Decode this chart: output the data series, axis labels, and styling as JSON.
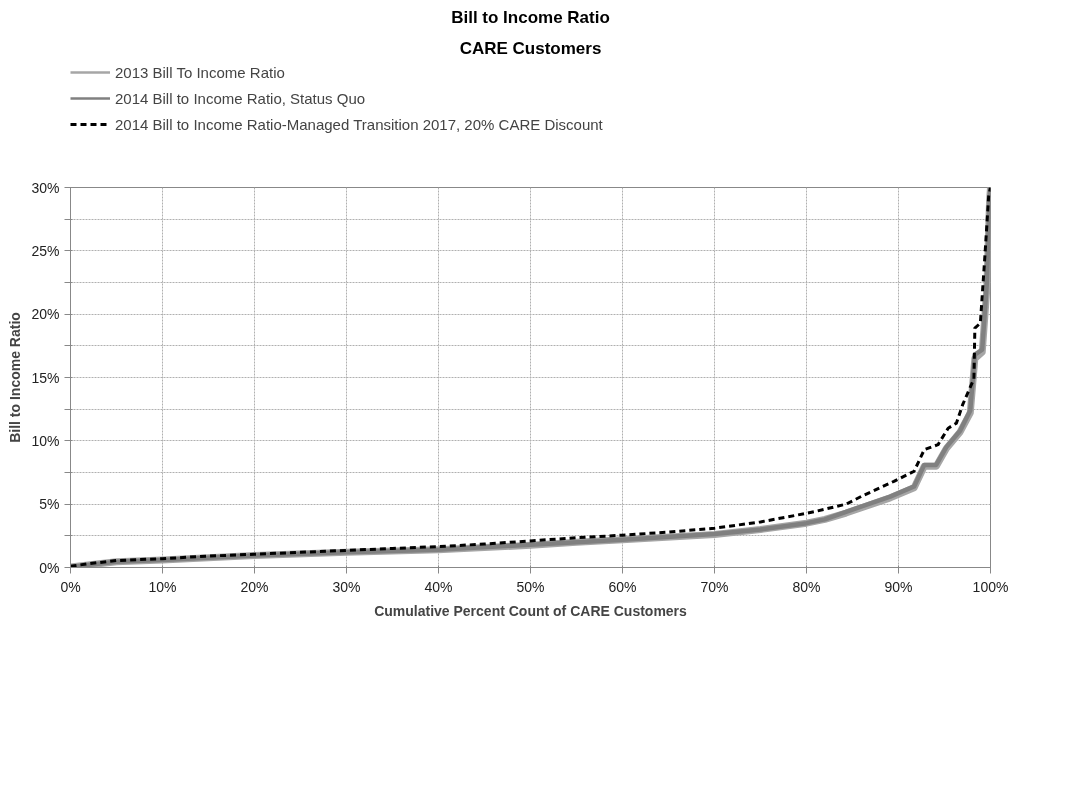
{
  "chart_data": {
    "type": "line",
    "title": "Bill to Income Ratio",
    "subtitle": "CARE Customers",
    "xlabel": "Cumulative Percent Count of CARE Customers",
    "ylabel": "Bill to Income Ratio",
    "xlim": [
      0,
      100
    ],
    "ylim": [
      0,
      30
    ],
    "xticks": [
      {
        "value": 0,
        "label": "0%"
      },
      {
        "value": 10,
        "label": "10%"
      },
      {
        "value": 20,
        "label": "20%"
      },
      {
        "value": 30,
        "label": "30%"
      },
      {
        "value": 40,
        "label": "40%"
      },
      {
        "value": 50,
        "label": "50%"
      },
      {
        "value": 60,
        "label": "60%"
      },
      {
        "value": 70,
        "label": "70%"
      },
      {
        "value": 80,
        "label": "80%"
      },
      {
        "value": 90,
        "label": "90%"
      },
      {
        "value": 100,
        "label": "100%"
      }
    ],
    "yticks": [
      {
        "value": 0,
        "label": "0%"
      },
      {
        "value": 2.5,
        "label": null
      },
      {
        "value": 5,
        "label": "5%"
      },
      {
        "value": 7.5,
        "label": null
      },
      {
        "value": 10,
        "label": "10%"
      },
      {
        "value": 12.5,
        "label": null
      },
      {
        "value": 15,
        "label": "15%"
      },
      {
        "value": 17.5,
        "label": null
      },
      {
        "value": 20,
        "label": "20%"
      },
      {
        "value": 22.5,
        "label": null
      },
      {
        "value": 25,
        "label": "25%"
      },
      {
        "value": 27.5,
        "label": null
      },
      {
        "value": 30,
        "label": "30%"
      }
    ],
    "grid": true,
    "legend": "top",
    "marker": "none",
    "series": [
      {
        "name": "2013 Bill To Income Ratio",
        "color": "#a6a6a6",
        "line_style": "solid",
        "x": [
          0,
          5,
          10,
          20,
          30,
          40,
          50,
          55,
          60,
          70,
          75,
          80,
          82,
          84.3,
          89.1,
          91.7,
          92.8,
          94.1,
          95.2,
          96.7,
          97.8,
          98.3,
          99.1,
          99.6,
          99.9,
          100
        ],
        "values": [
          0.05,
          0.45,
          0.6,
          0.95,
          1.2,
          1.4,
          1.75,
          2.0,
          2.2,
          2.6,
          3.0,
          3.5,
          3.8,
          4.3,
          5.5,
          6.3,
          8.0,
          8.0,
          9.4,
          10.7,
          12.2,
          16.5,
          17.0,
          22.0,
          29.0,
          30
        ]
      },
      {
        "name": "2014 Bill to Income Ratio, Status Quo",
        "color": "#808080",
        "line_style": "solid",
        "x": [
          0,
          5,
          10,
          20,
          30,
          40,
          50,
          55,
          60,
          70,
          75,
          80,
          82,
          84.3,
          89.1,
          91.7,
          92.8,
          94.1,
          95.2,
          96.7,
          97.8,
          98.3,
          99.1,
          99.6,
          99.9,
          100
        ],
        "values": [
          0.05,
          0.45,
          0.6,
          0.95,
          1.2,
          1.4,
          1.8,
          2.0,
          2.2,
          2.65,
          3.0,
          3.5,
          3.8,
          4.4,
          5.6,
          6.4,
          8.1,
          8.1,
          9.5,
          10.8,
          12.4,
          16.8,
          17.2,
          22.4,
          29.3,
          30
        ]
      },
      {
        "name": "2014 Bill to Income Ratio-Managed Transition 2017, 20% CARE Discount",
        "color": "#000000",
        "line_style": "dashed",
        "x": [
          0,
          2,
          5,
          10,
          15,
          20,
          25,
          30,
          35,
          40,
          45,
          50,
          55,
          60,
          65,
          70,
          75,
          78,
          80.8,
          84.3,
          86.2,
          89.5,
          91.7,
          92.8,
          94.3,
          95.4,
          96.3,
          97.0,
          98.2,
          98.3,
          98.9,
          99.4,
          99.8,
          100
        ],
        "values": [
          0.1,
          0.3,
          0.55,
          0.7,
          0.9,
          1.05,
          1.2,
          1.35,
          1.5,
          1.65,
          1.85,
          2.1,
          2.35,
          2.55,
          2.8,
          3.1,
          3.6,
          4.0,
          4.4,
          5.0,
          5.7,
          6.8,
          7.6,
          9.3,
          9.7,
          11.0,
          11.4,
          12.9,
          14.9,
          18.9,
          19.3,
          24.7,
          29.3,
          30
        ]
      }
    ]
  }
}
